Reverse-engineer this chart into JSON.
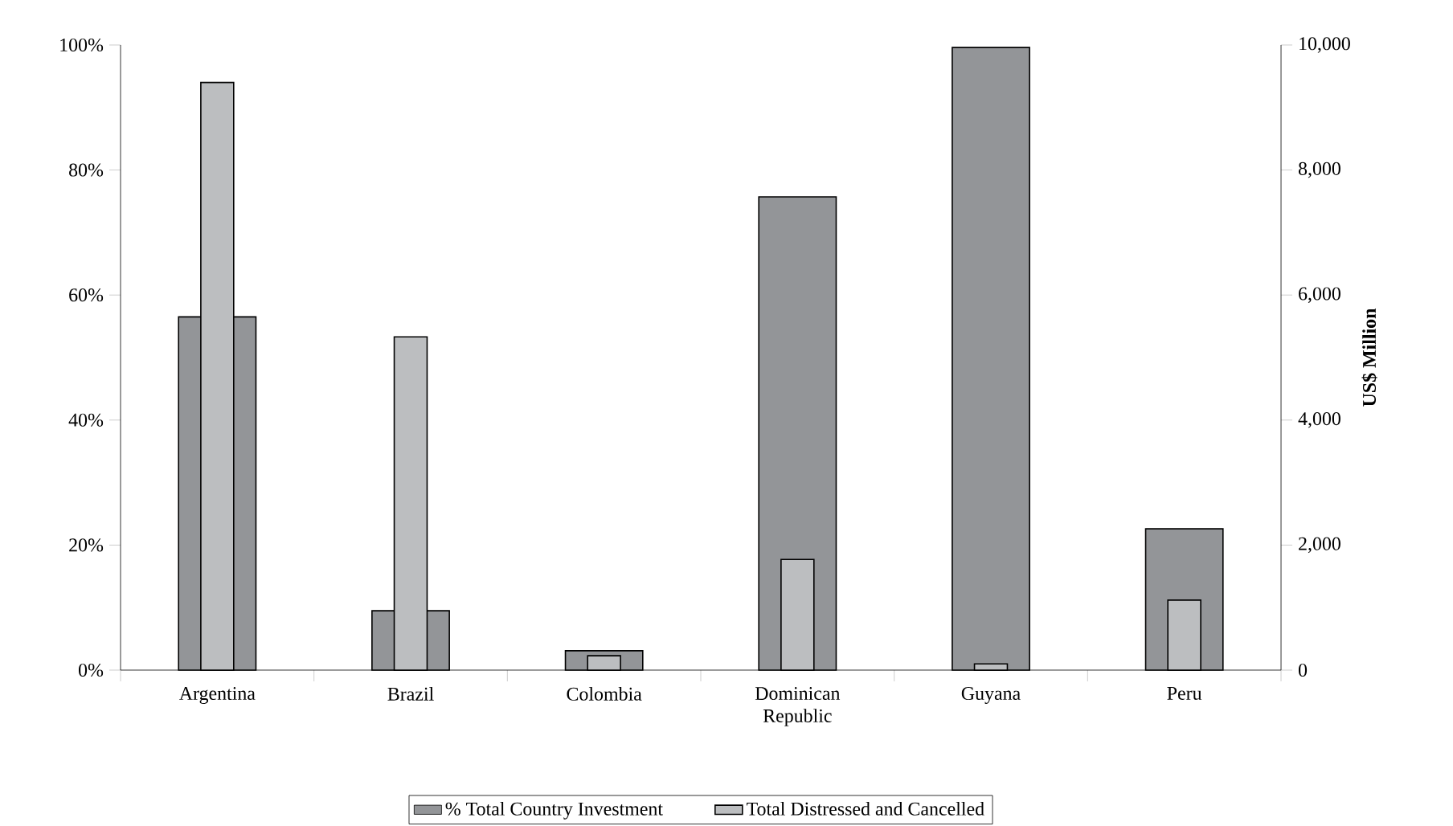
{
  "chart_data": {
    "type": "bar",
    "categories": [
      "Argentina",
      "Brazil",
      "Colombia",
      "Dominican Republic",
      "Guyana",
      "Peru"
    ],
    "series": [
      {
        "name": "% Total Country Investment",
        "color": "#939598",
        "axis": "y",
        "values": [
          56.5,
          9.5,
          3.1,
          75.7,
          99.6,
          22.6
        ]
      },
      {
        "name": "Total Distressed and Cancelled",
        "color": "#bcbec0",
        "axis": "y2",
        "values": [
          9400,
          5330,
          230,
          1770,
          100,
          1120
        ]
      }
    ],
    "ylim": [
      0,
      100
    ],
    "yticks": [
      {
        "value": 0,
        "label": "0%"
      },
      {
        "value": 20,
        "label": "20%"
      },
      {
        "value": 40,
        "label": "40%"
      },
      {
        "value": 60,
        "label": "60%"
      },
      {
        "value": 80,
        "label": "80%"
      },
      {
        "value": 100,
        "label": "100%"
      }
    ],
    "y2lim": [
      0,
      10000
    ],
    "y2ticks": [
      0,
      {
        "value": 2000,
        "label": "2,000"
      },
      {
        "value": 4000,
        "label": "4,000"
      },
      {
        "value": 6000,
        "label": "6,000"
      },
      {
        "value": 8000,
        "label": "8,000"
      },
      {
        "value": 10000,
        "label": "10,000"
      }
    ],
    "y2label": "US$ Million",
    "legend": "bottom",
    "grid": false
  }
}
